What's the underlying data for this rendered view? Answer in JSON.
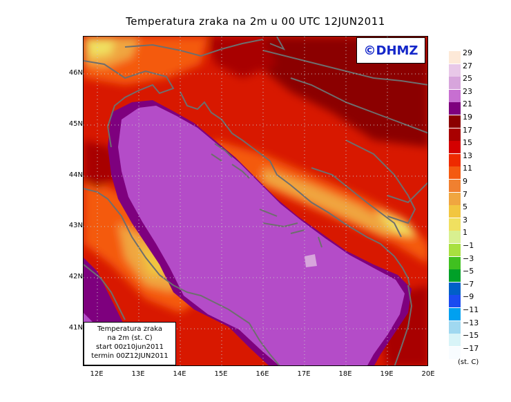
{
  "title": "Temperatura zraka na 2m u 00 UTC 12JUN2011",
  "logo": "©DHMZ",
  "infobox": {
    "line1": "Temperatura zraka",
    "line2": "na 2m (st. C)",
    "line3": "start 00z10jun2011",
    "line4": "termin 00Z12JUN2011"
  },
  "axes": {
    "lat_labels": [
      "46N",
      "45N",
      "44N",
      "43N",
      "42N",
      "41N"
    ],
    "lon_labels": [
      "12E",
      "13E",
      "14E",
      "15E",
      "16E",
      "17E",
      "18E",
      "19E",
      "20E"
    ]
  },
  "legend": {
    "unit": "(st. C)",
    "levels": [
      "29",
      "27",
      "25",
      "23",
      "21",
      "19",
      "17",
      "15",
      "13",
      "11",
      "9",
      "7",
      "5",
      "3",
      "1",
      "−1",
      "−3",
      "−5",
      "−7",
      "−9",
      "−11",
      "−13",
      "−15",
      "−17"
    ],
    "colors": [
      "#fde9d8",
      "#e8c8e8",
      "#d7a5dc",
      "#c76fd1",
      "#7e007e",
      "#8b0000",
      "#a80000",
      "#d40000",
      "#ee2a00",
      "#f45a10",
      "#f08030",
      "#f0a640",
      "#f2c640",
      "#f0e060",
      "#d8f090",
      "#a8e040",
      "#40c020",
      "#00a028",
      "#005fc8",
      "#1a4bf0",
      "#00a0f0",
      "#a0d8f0",
      "#d8f4f8",
      "#f8fcff"
    ]
  }
}
